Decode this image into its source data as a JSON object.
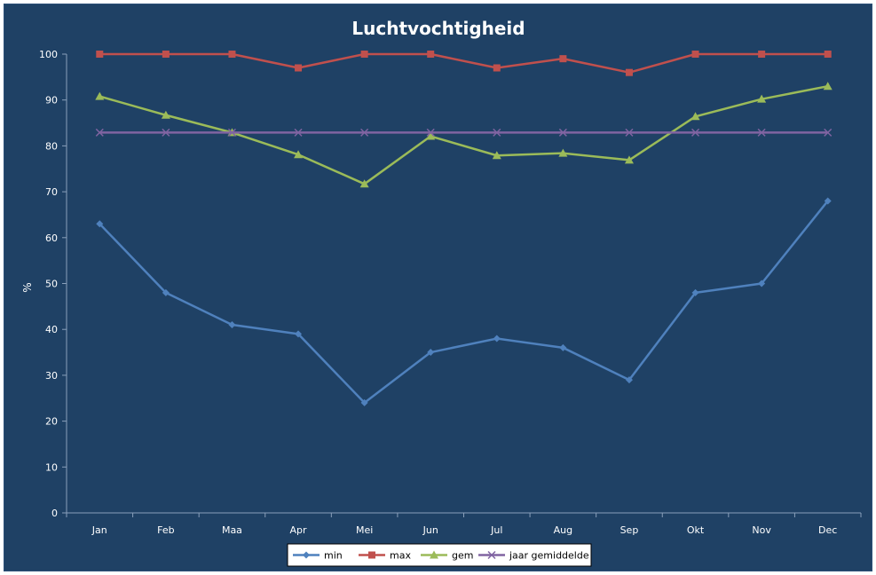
{
  "chart_data": {
    "type": "line",
    "title": "Luchtvochtigheid",
    "xlabel": "",
    "ylabel": "%",
    "ylim": [
      0,
      100
    ],
    "yticks": [
      0,
      10,
      20,
      30,
      40,
      50,
      60,
      70,
      80,
      90,
      100
    ],
    "categories": [
      "Jan",
      "Feb",
      "Maa",
      "Apr",
      "Mei",
      "Jun",
      "Jul",
      "Aug",
      "Sep",
      "Okt",
      "Nov",
      "Dec"
    ],
    "grid": false,
    "legend_position": "bottom",
    "background_color": "#1F4165",
    "series": [
      {
        "name": "min",
        "color": "#4F81BD",
        "marker": "diamond",
        "values": [
          63,
          48,
          41,
          39,
          24,
          35,
          38,
          36,
          29,
          48,
          50,
          68
        ]
      },
      {
        "name": "max",
        "color": "#C0504D",
        "marker": "square",
        "values": [
          100,
          100,
          100,
          97,
          100,
          100,
          97,
          99,
          96,
          100,
          100,
          100
        ]
      },
      {
        "name": "gem",
        "color": "#9BBB59",
        "marker": "triangle",
        "values": [
          90.8,
          86.7,
          82.9,
          78.1,
          71.7,
          82.1,
          77.9,
          78.4,
          76.9,
          86.4,
          90.2,
          93
        ]
      },
      {
        "name": "jaar gemiddelde",
        "color": "#8064A2",
        "marker": "x",
        "values": [
          82.9,
          82.9,
          82.9,
          82.9,
          82.9,
          82.9,
          82.9,
          82.9,
          82.9,
          82.9,
          82.9,
          82.9
        ]
      }
    ]
  }
}
